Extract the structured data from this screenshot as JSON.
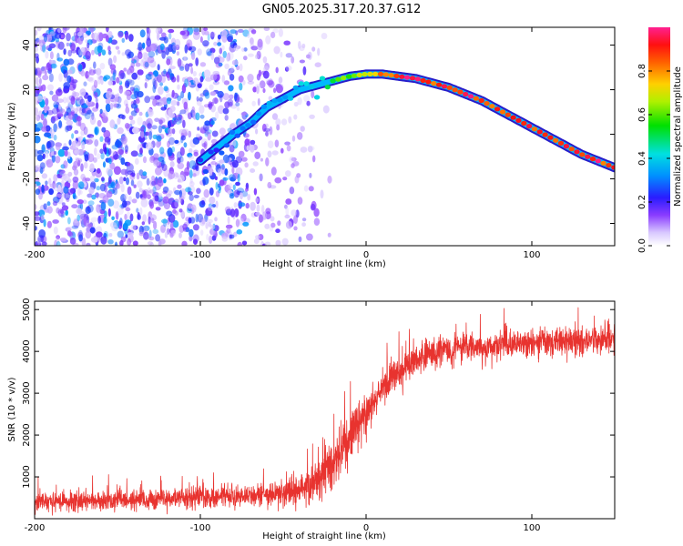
{
  "title": "GN05.2025.317.20.37.G12",
  "colors": {
    "snr_line": "#e8332f",
    "frame": "#000000",
    "background": "#ffffff"
  },
  "chart_data": [
    {
      "type": "heatmap",
      "name": "spectrogram",
      "xlabel": "Height of straight line (km)",
      "ylabel": "Frequency (Hz)",
      "xlim": [
        -200,
        150
      ],
      "ylim": [
        -50,
        48
      ],
      "xticks": [
        -200,
        -100,
        0,
        100
      ],
      "yticks": [
        -40,
        -20,
        0,
        20,
        40
      ],
      "colorbar": {
        "label": "Normalized spectral amplitude",
        "range": [
          0.0,
          1.0
        ],
        "ticks": [
          "0.0",
          "0.2",
          "0.4",
          "0.6",
          "0.8"
        ],
        "tick_values": [
          0.0,
          0.2,
          0.4,
          0.6,
          0.8
        ],
        "colormap": "rainbow (lavender-purple-blue-cyan-green-yellow-orange-red-magenta)"
      },
      "ridge": {
        "description": "Dominant frequency trace vs height",
        "points": [
          {
            "height_km": -100,
            "freq_hz": -12,
            "amp": 0.25
          },
          {
            "height_km": -90,
            "freq_hz": -6,
            "amp": 0.25
          },
          {
            "height_km": -80,
            "freq_hz": 0,
            "amp": 0.3
          },
          {
            "height_km": -70,
            "freq_hz": 5,
            "amp": 0.3
          },
          {
            "height_km": -60,
            "freq_hz": 12,
            "amp": 0.35
          },
          {
            "height_km": -50,
            "freq_hz": 16,
            "amp": 0.35
          },
          {
            "height_km": -40,
            "freq_hz": 20,
            "amp": 0.4
          },
          {
            "height_km": -30,
            "freq_hz": 22,
            "amp": 0.45
          },
          {
            "height_km": -20,
            "freq_hz": 24,
            "amp": 0.55
          },
          {
            "height_km": -10,
            "freq_hz": 26,
            "amp": 0.65
          },
          {
            "height_km": 0,
            "freq_hz": 27,
            "amp": 0.75
          },
          {
            "height_km": 10,
            "freq_hz": 27,
            "amp": 0.85
          },
          {
            "height_km": 20,
            "freq_hz": 26,
            "amp": 0.95
          },
          {
            "height_km": 30,
            "freq_hz": 25,
            "amp": 0.95
          },
          {
            "height_km": 40,
            "freq_hz": 23,
            "amp": 0.95
          },
          {
            "height_km": 50,
            "freq_hz": 21,
            "amp": 0.95
          },
          {
            "height_km": 60,
            "freq_hz": 18,
            "amp": 0.95
          },
          {
            "height_km": 70,
            "freq_hz": 15,
            "amp": 0.95
          },
          {
            "height_km": 80,
            "freq_hz": 11,
            "amp": 0.95
          },
          {
            "height_km": 90,
            "freq_hz": 7,
            "amp": 0.95
          },
          {
            "height_km": 100,
            "freq_hz": 3,
            "amp": 0.95
          },
          {
            "height_km": 110,
            "freq_hz": -1,
            "amp": 0.95
          },
          {
            "height_km": 120,
            "freq_hz": -5,
            "amp": 0.95
          },
          {
            "height_km": 130,
            "freq_hz": -9,
            "amp": 0.95
          },
          {
            "height_km": 140,
            "freq_hz": -12,
            "amp": 0.95
          },
          {
            "height_km": 150,
            "freq_hz": -15,
            "amp": 0.95
          }
        ]
      },
      "noise_region": {
        "height_km": [
          -200,
          -40
        ],
        "freq_hz": [
          -50,
          48
        ],
        "amp_range": [
          0.0,
          0.3
        ]
      }
    },
    {
      "type": "line",
      "name": "snr",
      "xlabel": "Height of straight line (km)",
      "ylabel": "SNR (10 * v/v)",
      "xlim": [
        -200,
        150
      ],
      "ylim": [
        0,
        5200
      ],
      "xticks": [
        -200,
        -100,
        0,
        100
      ],
      "yticks": [
        1000,
        2000,
        3000,
        4000,
        5000
      ],
      "series": [
        {
          "name": "SNR",
          "color": "#e8332f",
          "envelope": {
            "x": [
              -200,
              -180,
              -160,
              -140,
              -120,
              -100,
              -80,
              -60,
              -50,
              -40,
              -30,
              -20,
              -15,
              -10,
              -5,
              0,
              5,
              10,
              15,
              20,
              30,
              40,
              50,
              60,
              80,
              100,
              120,
              150
            ],
            "mean": [
              400,
              420,
              430,
              450,
              480,
              500,
              520,
              560,
              600,
              700,
              900,
              1300,
              1700,
              2000,
              2300,
              2500,
              2800,
              3100,
              3350,
              3550,
              3800,
              3950,
              4050,
              4100,
              4150,
              4200,
              4250,
              4300
            ],
            "spread": [
              300,
              300,
              300,
              320,
              320,
              330,
              340,
              360,
              400,
              500,
              650,
              800,
              800,
              800,
              700,
              700,
              650,
              600,
              550,
              500,
              450,
              450,
              450,
              450,
              450,
              450,
              450,
              450
            ]
          }
        }
      ]
    }
  ]
}
